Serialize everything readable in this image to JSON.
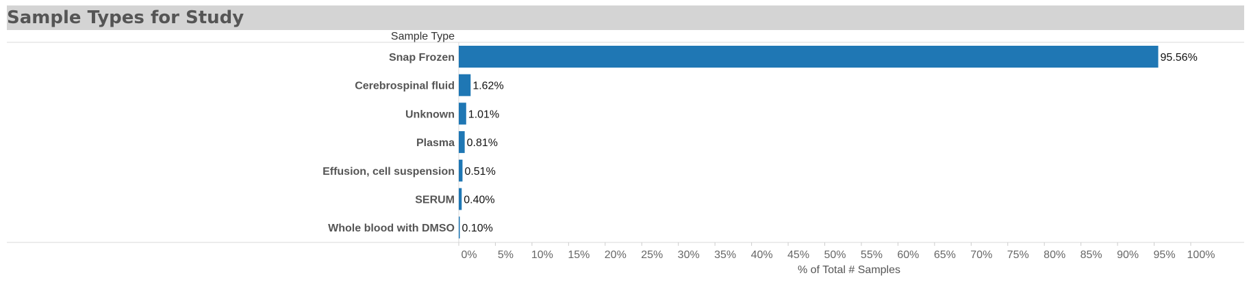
{
  "title": "Sample Types for Study",
  "chart_data": {
    "type": "bar",
    "orientation": "horizontal",
    "row_header": "Sample Type",
    "categories": [
      "Snap Frozen",
      "Cerebrospinal fluid",
      "Unknown",
      "Plasma",
      "Effusion, cell suspension",
      "SERUM",
      "Whole blood with DMSO"
    ],
    "values": [
      95.56,
      1.62,
      1.01,
      0.81,
      0.51,
      0.4,
      0.1
    ],
    "data_labels": [
      "95.56%",
      "1.62%",
      "1.01%",
      "0.81%",
      "0.51%",
      "0.40%",
      "0.10%"
    ],
    "xlabel": "% of Total # Samples",
    "xlim": [
      0,
      105
    ],
    "xticks": [
      0,
      5,
      10,
      15,
      20,
      25,
      30,
      35,
      40,
      45,
      50,
      55,
      60,
      65,
      70,
      75,
      80,
      85,
      90,
      95,
      100
    ],
    "xtick_labels": [
      "0%",
      "5%",
      "10%",
      "15%",
      "20%",
      "25%",
      "30%",
      "35%",
      "40%",
      "45%",
      "50%",
      "55%",
      "60%",
      "65%",
      "70%",
      "75%",
      "80%",
      "85%",
      "90%",
      "95%",
      "100%"
    ],
    "bar_color": "#1f77b4",
    "grid": false,
    "legend": "none"
  }
}
